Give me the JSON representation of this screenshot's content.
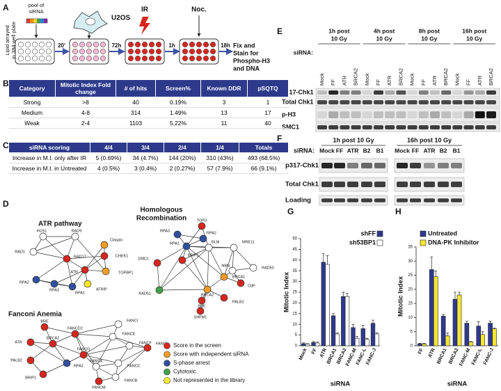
{
  "panel_labels": {
    "A": "A",
    "B": "B",
    "C": "C",
    "D": "D",
    "E": "E",
    "F": "F",
    "G": "G",
    "H": "H"
  },
  "panel_a": {
    "pool": [
      "pool of",
      "siRNA"
    ],
    "cell": "U2OS",
    "ir": "IR",
    "noc": "Noc.",
    "side": [
      "Lipid arrayed",
      "in 384 well plate"
    ],
    "times": [
      "20'",
      "72h",
      "1h",
      "18h"
    ],
    "result": [
      "Fix and",
      "Stain for",
      "Phospho-H3",
      "and DNA"
    ]
  },
  "table_b": {
    "headers": [
      "Category",
      "Mitotic Index Fold change",
      "# of hits",
      "Screen%",
      "Known DDR",
      "pSQTQ"
    ],
    "rows": [
      [
        "Strong",
        ">8",
        "40",
        "0.19%",
        "3",
        "1"
      ],
      [
        "Medium",
        "4-8",
        "314",
        "1.49%",
        "13",
        "17"
      ],
      [
        "Weak",
        "2-4",
        "1103",
        "5.22%",
        "11",
        "40"
      ]
    ]
  },
  "table_c": {
    "headers": [
      "siRNA scoring",
      "4/4",
      "3/4",
      "2/4",
      "1/4",
      "Totals"
    ],
    "rows": [
      [
        "Increase in M.I. only after IR",
        "5 (0.69%)",
        "34 (4.7%)",
        "144 (20%)",
        "310 (43%)",
        "493 (68.5%)"
      ],
      [
        "Increase in M.I. in Untreated",
        "4 (0.5%)",
        "3 (0.4%)",
        "2 (0.27%)",
        "57 (7.9%)",
        "66 (9.1%)"
      ]
    ]
  },
  "network_d": {
    "atr": {
      "title": [
        "ATR pathway"
      ],
      "nodes": [
        "HUS1",
        "RAD9",
        "Claspin",
        "RAD1",
        "RAD17",
        "CHEK1",
        "ATR",
        "TOPBP1",
        "RPA2",
        "RPA3",
        "RPA1",
        "ATRIP"
      ]
    },
    "hr": {
      "title": [
        "Homologous",
        "Recombination"
      ],
      "nodes": [
        "TOP3",
        "RPA3",
        "RPA2",
        "RPA1",
        "BLM",
        "MRE11",
        "DMC1",
        "BRIP1",
        "RAD50",
        "NBN",
        "BRCA1",
        "RAD51",
        "BRCA2",
        "CtIP",
        "BRE",
        "PALB2",
        "SHFM1"
      ]
    },
    "fa": {
      "title": [
        "Fanconi Anemia"
      ],
      "nodes": [
        "BRE",
        "FANCD2",
        "FANCI",
        "FANCE",
        "ATR",
        "BRCA2",
        "FANCF",
        "FANCL",
        "FANCG",
        "PALB2",
        "RPA1",
        "FANCC",
        "FANCA",
        "BRIP1",
        "FANCB",
        "FANCM"
      ]
    },
    "legend": [
      "Score in the screen",
      "Score with independent siRNA",
      "S-phase arrest",
      "Cytotoxic",
      "Not represented in the library"
    ]
  },
  "blot_e": {
    "headers": [
      [
        "1h post",
        "10 Gy"
      ],
      [
        "4h post",
        "10 Gy"
      ],
      [
        "8h post",
        "10 Gy"
      ],
      [
        "16h post",
        "10 Gy"
      ]
    ],
    "sirna": "siRNA:",
    "lanes": [
      "Mock",
      "FF",
      "ATR",
      "BRCA2",
      "Mock",
      "FF",
      "ATR",
      "BRCA2",
      "Mock",
      "FF",
      "ATR",
      "BRCA2",
      "Mock",
      "FF",
      "ATR",
      "BRCA2"
    ],
    "rows": [
      "p317-Chk1",
      "Total Chk1",
      "p-H3",
      "SMC1"
    ]
  },
  "blot_f": {
    "headers": [
      "1h post 10 Gy",
      "16h post 10 Gy"
    ],
    "sirna": "siRNA:",
    "lanes": [
      [
        "Mock",
        "FF",
        "ATR",
        "B2",
        "B1"
      ],
      [
        "Mock",
        "FF",
        "ATR",
        "B2",
        "B1"
      ]
    ],
    "rows": [
      "p317-Chk1",
      "Total Chk1",
      "Loading"
    ]
  },
  "chart_data": [
    {
      "type": "bar",
      "categories": [
        "Mock",
        "FF",
        "ATR",
        "BRCA1",
        "BRCA2",
        "FANC-M",
        "FANC-L",
        "FANC-J"
      ],
      "series": [
        {
          "name": "shFF",
          "color": "#2e3a8f",
          "values": [
            1,
            1.5,
            39,
            14,
            23,
            8.5,
            8,
            10.5
          ],
          "errors": [
            0.4,
            0.5,
            4,
            1,
            2,
            1.5,
            1.5,
            1.5
          ]
        },
        {
          "name": "sh53BP1",
          "color": "#ffffff",
          "values": [
            0.8,
            1.3,
            38,
            5.5,
            23,
            3.5,
            3,
            5.5
          ],
          "errors": [
            0.2,
            0.4,
            4,
            0.5,
            1.5,
            0.8,
            0.5,
            0.5
          ]
        }
      ],
      "ylim": [
        0,
        50
      ],
      "yticks": [
        0,
        5,
        10,
        15,
        20,
        25,
        30,
        35,
        40,
        45,
        50
      ],
      "y_label": "Mitotic Index",
      "x_label": "siRNA"
    },
    {
      "type": "bar",
      "categories": [
        "FF",
        "ATR",
        "BRCA1",
        "BRCA2",
        "FANC-M",
        "FANC-L",
        "FANC-J"
      ],
      "series": [
        {
          "name": "Untreated",
          "color": "#2e3a8f",
          "values": [
            0.7,
            27,
            10.5,
            16.5,
            8,
            7,
            8
          ],
          "errors": [
            0.2,
            4.5,
            0.6,
            2.5,
            0.7,
            1.5,
            0.8
          ]
        },
        {
          "name": "DNA-PK Inhibitor",
          "color": "#f4e632",
          "values": [
            0.7,
            24.5,
            3.5,
            18,
            1.3,
            4,
            6
          ],
          "errors": [
            0.2,
            2,
            1,
            1,
            0.2,
            1,
            0.3
          ]
        }
      ],
      "ylim": [
        0,
        35
      ],
      "yticks": [
        0,
        5,
        10,
        15,
        20,
        25,
        30,
        35
      ],
      "y_label": "Mitotic Index",
      "x_label": "siRNA"
    }
  ]
}
